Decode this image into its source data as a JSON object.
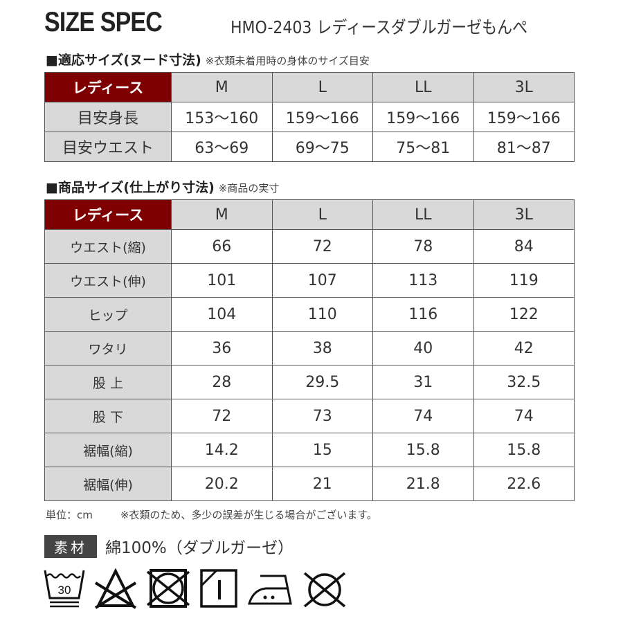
{
  "header": {
    "title": "SIZE SPEC",
    "product": "HMO-2403 レディースダブルガーゼもんぺ"
  },
  "nude": {
    "heading": "■適応サイズ(ヌード寸法)",
    "note": "※衣類未着用時の身体のサイズ目安",
    "columns": [
      "レディース",
      "M",
      "L",
      "LL",
      "3L"
    ],
    "rows": [
      [
        "目安身長",
        "153〜160",
        "159〜166",
        "159〜166",
        "159〜166"
      ],
      [
        "目安ウエスト",
        "63〜69",
        "69〜75",
        "75〜81",
        "81〜87"
      ]
    ]
  },
  "product_size": {
    "heading": "■商品サイズ(仕上がり寸法)",
    "note": "※商品の実寸",
    "columns": [
      "レディース",
      "M",
      "L",
      "LL",
      "3L"
    ],
    "rows": [
      [
        "ウエスト(縮)",
        "66",
        "72",
        "78",
        "84"
      ],
      [
        "ウエスト(伸)",
        "101",
        "107",
        "113",
        "119"
      ],
      [
        "ヒップ",
        "104",
        "110",
        "116",
        "122"
      ],
      [
        "ワタリ",
        "36",
        "38",
        "40",
        "42"
      ],
      [
        "股 上",
        "28",
        "29.5",
        "31",
        "32.5"
      ],
      [
        "股 下",
        "72",
        "73",
        "74",
        "74"
      ],
      [
        "裾幅(縮)",
        "14.2",
        "15",
        "15.8",
        "15.8"
      ],
      [
        "裾幅(伸)",
        "20.2",
        "21",
        "21.8",
        "22.6"
      ]
    ]
  },
  "footnote": {
    "unit": "単位：cm",
    "note": "※衣類のため、多少の誤差が生じる場合がございます。"
  },
  "material": {
    "label": "素材",
    "value": "綿100%（ダブルガーゼ）"
  },
  "care_icons": [
    "wash-30-gentle-icon",
    "no-bleach-icon",
    "no-tumble-dry-icon",
    "drip-dry-shade-icon",
    "iron-medium-icon",
    "no-dry-clean-icon"
  ],
  "colors": {
    "header_red": "#7f0000",
    "cell_gray": "#d9d9d9"
  }
}
